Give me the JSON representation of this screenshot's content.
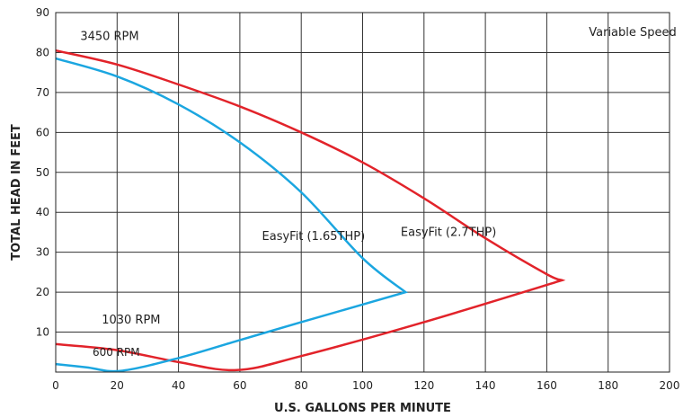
{
  "chart_data": {
    "type": "line",
    "title": "",
    "xlabel": "U.S. GALLONS PER MINUTE",
    "ylabel": "TOTAL HEAD IN FEET",
    "xlim": [
      0,
      200
    ],
    "ylim": [
      0,
      90
    ],
    "grid": true,
    "x_ticks": [
      0,
      20,
      40,
      60,
      80,
      100,
      120,
      140,
      160,
      180,
      200
    ],
    "x_tick_labels": [
      "0",
      "20",
      "40",
      "60",
      "80",
      "100",
      "120",
      "140",
      "160",
      "180",
      "200"
    ],
    "y_ticks": [
      10,
      20,
      30,
      40,
      50,
      60,
      70,
      80,
      90
    ],
    "y_tick_labels": [
      "10",
      "20",
      "30",
      "40",
      "50",
      "60",
      "70",
      "80",
      "90"
    ],
    "series": [
      {
        "color": "#e2232a",
        "x": [
          0,
          20,
          40,
          60,
          80,
          100,
          120,
          140,
          160,
          165,
          120,
          80,
          59,
          40,
          20,
          0
        ],
        "y": [
          80.5,
          77,
          72,
          66.5,
          60,
          52.5,
          43.5,
          33.5,
          24.5,
          23,
          12.5,
          4,
          0.5,
          2.5,
          5.5,
          7
        ]
      },
      {
        "color": "#1ba6e0",
        "x": [
          0,
          20,
          40,
          60,
          80,
          100,
          114,
          80,
          60,
          40,
          21,
          10,
          0
        ],
        "y": [
          78.5,
          74,
          67,
          57.5,
          45,
          28.5,
          20,
          12.5,
          8,
          3.5,
          0.3,
          1.2,
          2
        ]
      }
    ],
    "annotations": [
      {
        "text": "3450 RPM",
        "x": 8,
        "y": 84,
        "size": "normal"
      },
      {
        "text": "Variable Speed",
        "x": 188,
        "y": 85,
        "size": "normal"
      },
      {
        "text": "EasyFit (1.65THP)",
        "x": 84,
        "y": 34,
        "size": "normal"
      },
      {
        "text": "EasyFit (2.7THP)",
        "x": 128,
        "y": 35,
        "size": "normal"
      },
      {
        "text": "1030 RPM",
        "x": 15,
        "y": 13,
        "size": "normal"
      },
      {
        "text": "600 RPM",
        "x": 12,
        "y": 5,
        "size": "small"
      }
    ]
  }
}
